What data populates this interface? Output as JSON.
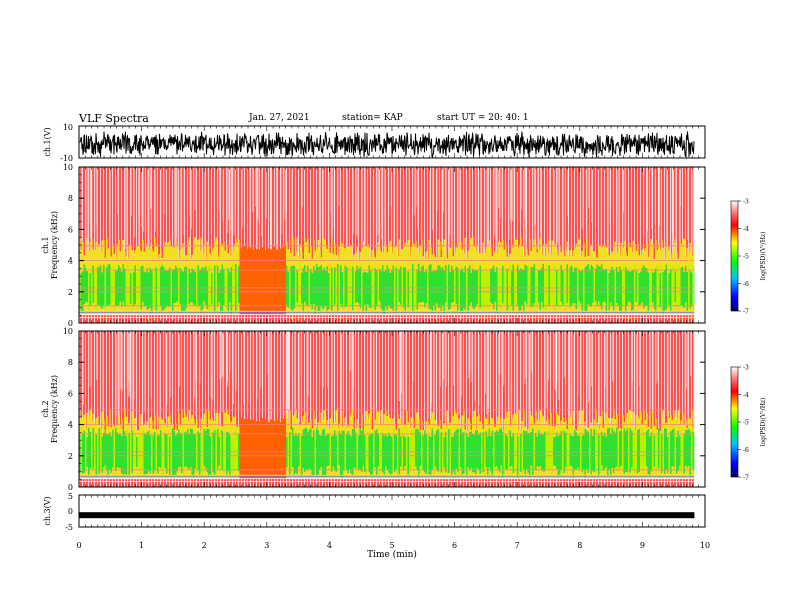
{
  "header": {
    "title": "VLF Spectra",
    "date": "Jan. 27, 2021",
    "station": "station= KAP",
    "start": "start UT =  20: 40: 1"
  },
  "chart_data": [
    {
      "type": "line",
      "panel": "ch1-time-series",
      "ylabel": "ch.1(V)",
      "ylim": [
        -10,
        10
      ],
      "yticks": [
        "10",
        "-10"
      ],
      "xlim": [
        0,
        10
      ],
      "description_values": {
        "trace_range_approx": [
          -9,
          9
        ]
      }
    },
    {
      "type": "heatmap",
      "panel": "ch1-spectrogram",
      "ylabel_top": "ch.1",
      "ylabel": "Frequency (kHz)",
      "ylim": [
        0,
        10
      ],
      "yticks": [
        "0",
        "2",
        "4",
        "6",
        "8",
        "10"
      ],
      "xlim": [
        0,
        10
      ],
      "data_end_min": 9.83,
      "colorbar": {
        "label": "log(PSD)(V²/Hz)",
        "ticks": [
          "-3",
          "-4",
          "-5",
          "-6",
          "-7"
        ],
        "range": [
          -7,
          -3
        ]
      },
      "gap_interval_min": [
        2.55,
        3.3
      ]
    },
    {
      "type": "heatmap",
      "panel": "ch2-spectrogram",
      "ylabel_top": "ch.2",
      "ylabel": "Frequency (kHz)",
      "ylim": [
        0,
        10
      ],
      "yticks": [
        "0",
        "2",
        "4",
        "6",
        "8",
        "10"
      ],
      "xlim": [
        0,
        10
      ],
      "data_end_min": 9.83,
      "colorbar": {
        "label": "log(PSD)(V²/Hz)",
        "ticks": [
          "-3",
          "-4",
          "-5",
          "-6",
          "-7"
        ],
        "range": [
          -7,
          -3
        ]
      },
      "gap_interval_min": [
        2.55,
        3.3
      ]
    },
    {
      "type": "line",
      "panel": "ch3-time-series",
      "ylabel": "ch.3(V)",
      "ylim": [
        -5,
        5
      ],
      "yticks": [
        "5",
        "0",
        "-5"
      ],
      "xlim": [
        0,
        10
      ],
      "xlabel": "Time (min)",
      "xticks": [
        "0",
        "1",
        "2",
        "3",
        "4",
        "5",
        "6",
        "7",
        "8",
        "9",
        "10"
      ],
      "description_values": {
        "trace_level_approx": -1.3
      }
    }
  ],
  "colors": {
    "high": "#ff0000",
    "upper_mid": "#ffff00",
    "mid": "#00ff00",
    "low": "#0000ff",
    "lowest": "#000080",
    "trace": "#000000"
  }
}
